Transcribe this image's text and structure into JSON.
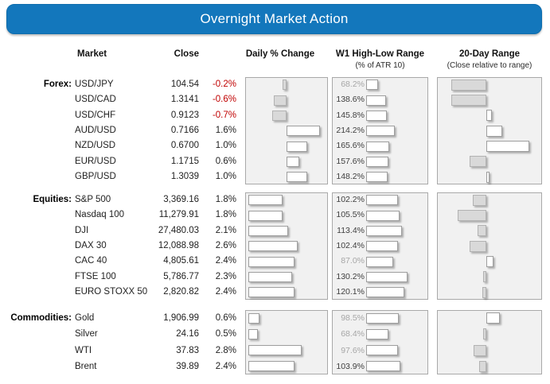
{
  "header": {
    "title": "Overnight Market Action"
  },
  "columns": {
    "market": "Market",
    "close": "Close",
    "daily_change": "Daily % Change",
    "w1_range": "W1 High-Low Range",
    "w1_range_sub": "(% of ATR 10)",
    "day20_range": "20-Day Range",
    "day20_range_sub": "(Close relative to range)"
  },
  "colors": {
    "header_bg": "#1377bc",
    "negative_text": "#c00000",
    "muted_label": "#a6a6a6",
    "panel_bg": "#f1f1f1",
    "bar_positive": "#ffffff",
    "bar_negative": "#d9d9d9"
  },
  "chart_data": {
    "type": "table",
    "title": "Overnight Market Action",
    "legend": "Gray bars = negative / below range midpoint; white bars = positive / above range midpoint",
    "sections": [
      {
        "label": "Forex:",
        "rows": [
          {
            "market": "USD/JPY",
            "close": "104.54",
            "daily_pct": -0.2,
            "daily_text": "-0.2%",
            "w1_pct": 68.2,
            "w1_text": "68.2%",
            "range20_pos_pct": 17
          },
          {
            "market": "USD/CAD",
            "close": "1.3141",
            "daily_pct": -0.6,
            "daily_text": "-0.6%",
            "w1_pct": 138.6,
            "w1_text": "138.6%",
            "range20_pos_pct": 17
          },
          {
            "market": "USD/CHF",
            "close": "0.9123",
            "daily_pct": -0.7,
            "daily_text": "-0.7%",
            "w1_pct": 145.8,
            "w1_text": "145.8%",
            "range20_pos_pct": 55
          },
          {
            "market": "AUD/USD",
            "close": "0.7166",
            "daily_pct": 1.6,
            "daily_text": "1.6%",
            "w1_pct": 214.2,
            "w1_text": "214.2%",
            "range20_pos_pct": 65
          },
          {
            "market": "NZD/USD",
            "close": "0.6700",
            "daily_pct": 1.0,
            "daily_text": "1.0%",
            "w1_pct": 165.6,
            "w1_text": "165.6%",
            "range20_pos_pct": 91
          },
          {
            "market": "EUR/USD",
            "close": "1.1715",
            "daily_pct": 0.6,
            "daily_text": "0.6%",
            "w1_pct": 157.6,
            "w1_text": "157.6%",
            "range20_pos_pct": 34
          },
          {
            "market": "GBP/USD",
            "close": "1.3039",
            "daily_pct": 1.0,
            "daily_text": "1.0%",
            "w1_pct": 148.2,
            "w1_text": "148.2%",
            "range20_pos_pct": 53
          }
        ]
      },
      {
        "label": "Equities:",
        "rows": [
          {
            "market": "S&P 500",
            "close": "3,369.16",
            "daily_pct": 1.8,
            "daily_text": "1.8%",
            "w1_pct": 102.2,
            "w1_text": "102.2%",
            "range20_pos_pct": 37
          },
          {
            "market": "Nasdaq 100",
            "close": "11,279.91",
            "daily_pct": 1.8,
            "daily_text": "1.8%",
            "w1_pct": 105.5,
            "w1_text": "105.5%",
            "range20_pos_pct": 23
          },
          {
            "market": "DJI",
            "close": "27,480.03",
            "daily_pct": 2.1,
            "daily_text": "2.1%",
            "w1_pct": 113.4,
            "w1_text": "113.4%",
            "range20_pos_pct": 42
          },
          {
            "market": "DAX 30",
            "close": "12,088.98",
            "daily_pct": 2.6,
            "daily_text": "2.6%",
            "w1_pct": 102.4,
            "w1_text": "102.4%",
            "range20_pos_pct": 34
          },
          {
            "market": "CAC 40",
            "close": "4,805.61",
            "daily_pct": 2.4,
            "daily_text": "2.4%",
            "w1_pct": 87.0,
            "w1_text": "87.0%",
            "range20_pos_pct": 57
          },
          {
            "market": "FTSE 100",
            "close": "5,786.77",
            "daily_pct": 2.3,
            "daily_text": "2.3%",
            "w1_pct": 130.2,
            "w1_text": "130.2%",
            "range20_pos_pct": 48
          },
          {
            "market": "EURO STOXX 50",
            "close": "2,820.82",
            "daily_pct": 2.4,
            "daily_text": "2.4%",
            "w1_pct": 120.1,
            "w1_text": "120.1%",
            "range20_pos_pct": 46
          }
        ]
      },
      {
        "label": "Commodities:",
        "rows": [
          {
            "market": "Gold",
            "close": "1,906.99",
            "daily_pct": 0.6,
            "daily_text": "0.6%",
            "w1_pct": 98.5,
            "w1_text": "98.5%",
            "range20_pos_pct": 63
          },
          {
            "market": "Silver",
            "close": "24.16",
            "daily_pct": 0.5,
            "daily_text": "0.5%",
            "w1_pct": 68.4,
            "w1_text": "68.4%",
            "range20_pos_pct": 48
          },
          {
            "market": "WTI",
            "close": "37.83",
            "daily_pct": 2.8,
            "daily_text": "2.8%",
            "w1_pct": 97.6,
            "w1_text": "97.6%",
            "range20_pos_pct": 38
          },
          {
            "market": "Brent",
            "close": "39.89",
            "daily_pct": 2.4,
            "daily_text": "2.4%",
            "w1_pct": 103.9,
            "w1_text": "103.9%",
            "range20_pos_pct": 43
          }
        ]
      }
    ]
  }
}
